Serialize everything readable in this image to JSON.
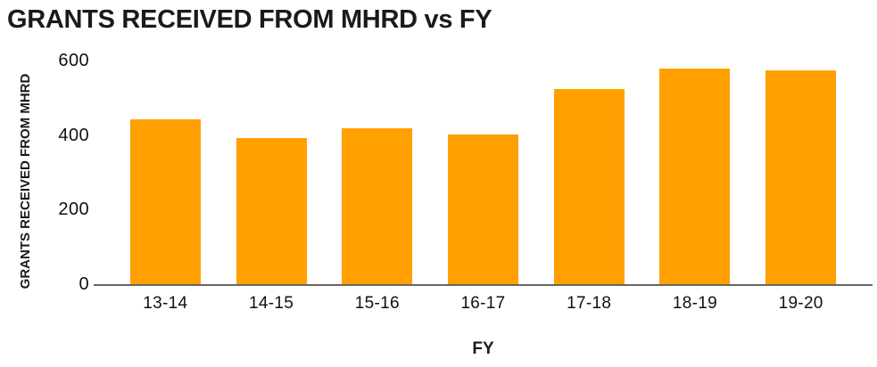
{
  "title": "GRANTS RECEIVED FROM MHRD vs FY",
  "colors": {
    "bar": "#FFA000",
    "axis_line": "#666666",
    "text": "#1A1A1A"
  },
  "chart_data": {
    "type": "bar",
    "title": "GRANTS RECEIVED FROM MHRD vs FY",
    "xlabel": "FY",
    "ylabel": "GRANTS RECEIVED FROM MHRD",
    "categories": [
      "13-14",
      "14-15",
      "15-16",
      "16-17",
      "17-18",
      "18-19",
      "19-20"
    ],
    "values": [
      445,
      395,
      420,
      405,
      525,
      580,
      575
    ],
    "ylim": [
      0,
      600
    ],
    "yticks": [
      0,
      200,
      400,
      600
    ],
    "grid": false,
    "legend": false,
    "bar_color": "#FFA000"
  }
}
